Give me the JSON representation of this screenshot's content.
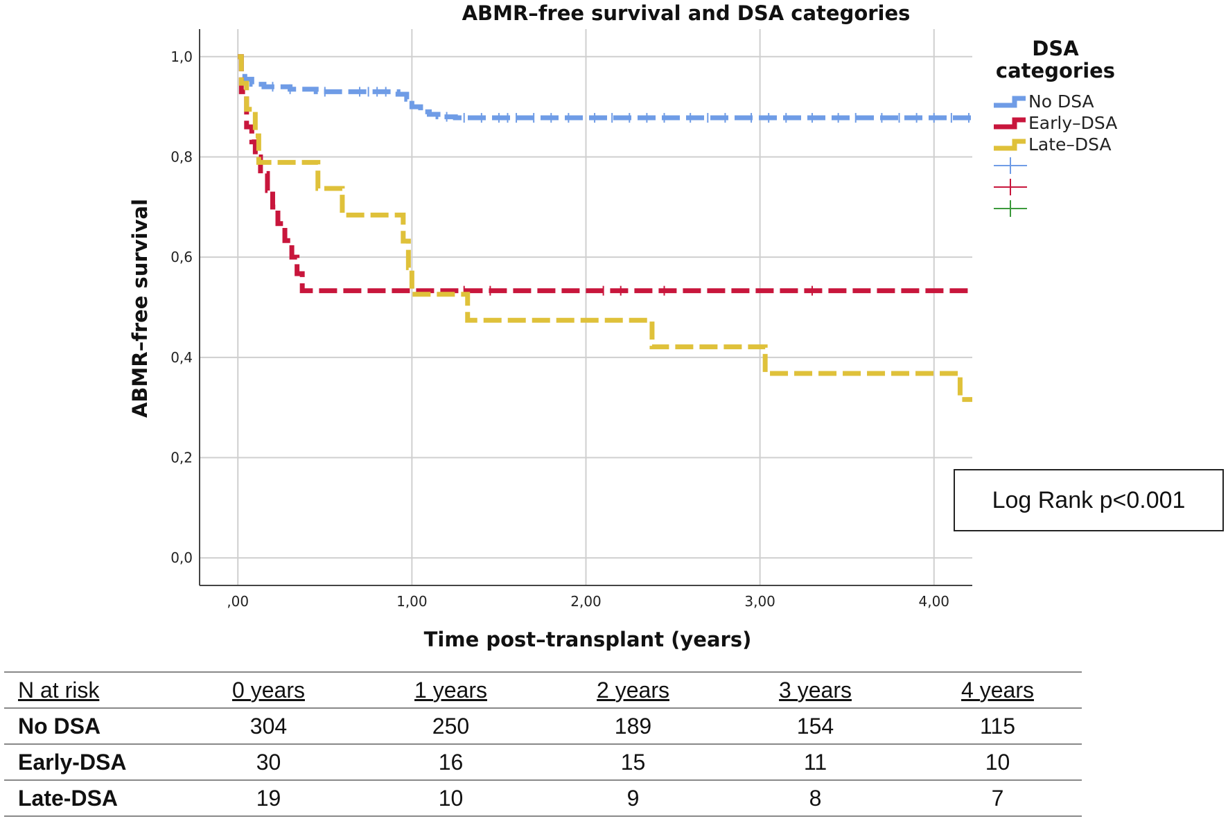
{
  "chart_data": {
    "type": "line",
    "title": "ABMR–free survival and DSA categories",
    "xlabel": "Time post–transplant (years)",
    "ylabel": "ABMR–free survival",
    "xlim": [
      -0.22,
      4.22
    ],
    "ylim": [
      -0.055,
      1.055
    ],
    "x_ticks": [
      0,
      1,
      2,
      3,
      4
    ],
    "x_tick_labels": [
      ",00",
      "1,00",
      "2,00",
      "3,00",
      "4,00"
    ],
    "y_ticks": [
      0,
      0.2,
      0.4,
      0.6,
      0.8,
      1.0
    ],
    "y_tick_labels": [
      "0,0",
      "0,2",
      "0,4",
      "0,6",
      "0,8",
      "1,0"
    ],
    "grid": true,
    "legend_title": "DSA categories",
    "legend_position": "right",
    "series": [
      {
        "name": "No DSA",
        "color": "#6f9ce6",
        "steps": [
          [
            0,
            1.0
          ],
          [
            0.02,
            0.97
          ],
          [
            0.04,
            0.955
          ],
          [
            0.08,
            0.945
          ],
          [
            0.15,
            0.94
          ],
          [
            0.3,
            0.935
          ],
          [
            0.45,
            0.93
          ],
          [
            0.8,
            0.93
          ],
          [
            0.92,
            0.925
          ],
          [
            0.97,
            0.915
          ],
          [
            1.0,
            0.9
          ],
          [
            1.05,
            0.89
          ],
          [
            1.1,
            0.885
          ],
          [
            1.15,
            0.88
          ],
          [
            1.25,
            0.878
          ],
          [
            4.22,
            0.878
          ]
        ],
        "censor_x": [
          0.2,
          0.3,
          0.5,
          0.7,
          0.75,
          0.8,
          0.85,
          1.2,
          1.3,
          1.4,
          1.5,
          1.55,
          1.6,
          1.7,
          1.8,
          1.9,
          2.05,
          2.15,
          2.25,
          2.35,
          2.45,
          2.6,
          2.7,
          2.8,
          2.95,
          3.05,
          3.15,
          3.3,
          3.45,
          3.55,
          3.7,
          3.8,
          3.9,
          4.0,
          4.1,
          4.2
        ]
      },
      {
        "name": "Early–DSA",
        "color": "#c8163c",
        "steps": [
          [
            0,
            1.0
          ],
          [
            0.02,
            0.93
          ],
          [
            0.05,
            0.86
          ],
          [
            0.08,
            0.83
          ],
          [
            0.1,
            0.8
          ],
          [
            0.13,
            0.767
          ],
          [
            0.17,
            0.733
          ],
          [
            0.2,
            0.7
          ],
          [
            0.23,
            0.667
          ],
          [
            0.27,
            0.633
          ],
          [
            0.31,
            0.6
          ],
          [
            0.34,
            0.567
          ],
          [
            0.37,
            0.533
          ],
          [
            4.22,
            0.533
          ]
        ],
        "censor_x": [
          1.3,
          1.45,
          2.1,
          2.2,
          2.45,
          3.3
        ]
      },
      {
        "name": "Late–DSA",
        "color": "#dfc13a",
        "steps": [
          [
            0,
            1.0
          ],
          [
            0.02,
            0.947
          ],
          [
            0.05,
            0.895
          ],
          [
            0.1,
            0.842
          ],
          [
            0.12,
            0.789
          ],
          [
            0.46,
            0.737
          ],
          [
            0.6,
            0.684
          ],
          [
            0.95,
            0.632
          ],
          [
            0.98,
            0.579
          ],
          [
            1.0,
            0.526
          ],
          [
            1.32,
            0.474
          ],
          [
            2.38,
            0.421
          ],
          [
            3.03,
            0.368
          ],
          [
            4.15,
            0.316
          ],
          [
            4.22,
            0.316
          ]
        ],
        "censor_x": []
      }
    ],
    "empty_legend_colors": [
      "#6f9ce6",
      "#c8163c",
      "#3c9a3c"
    ],
    "annotation": "Log Rank p<0.001"
  },
  "risk_table": {
    "headers": [
      "N at risk",
      "0 years",
      "1 years",
      "2 years",
      "3 years",
      "4 years"
    ],
    "rows": [
      {
        "label": "No DSA",
        "values": [
          "304",
          "250",
          "189",
          "154",
          "115"
        ]
      },
      {
        "label": "Early-DSA",
        "values": [
          "30",
          "16",
          "15",
          "11",
          "10"
        ]
      },
      {
        "label": "Late-DSA",
        "values": [
          "19",
          "10",
          "9",
          "8",
          "7"
        ]
      }
    ]
  }
}
